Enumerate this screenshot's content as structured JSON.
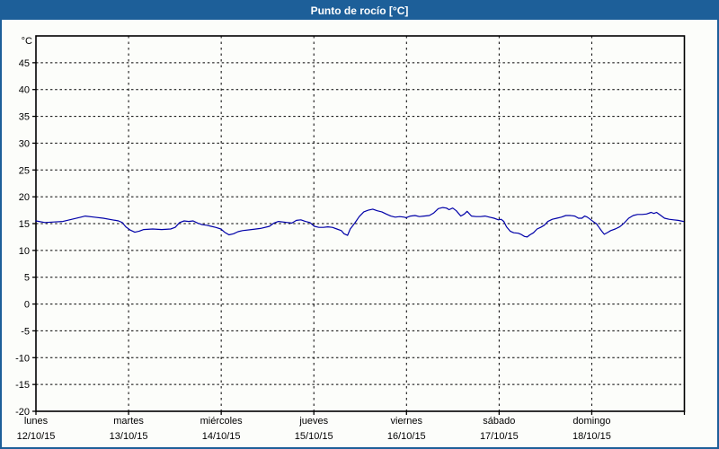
{
  "window": {
    "title": "Punto de rocío [°C]"
  },
  "chart_data": {
    "type": "line",
    "title": "Punto de rocío [°C]",
    "xlabel": "",
    "ylabel": "°C",
    "x_range": [
      0,
      7
    ],
    "ylim": [
      -20,
      50
    ],
    "yticks": [
      45,
      40,
      35,
      30,
      25,
      20,
      15,
      10,
      5,
      0,
      -5,
      -10,
      -15,
      -20
    ],
    "grid": "dashed-black",
    "legend_position": "none",
    "categories": [
      {
        "day": "lunes",
        "date": "12/10/15"
      },
      {
        "day": "martes",
        "date": "13/10/15"
      },
      {
        "day": "miércoles",
        "date": "14/10/15"
      },
      {
        "day": "jueves",
        "date": "15/10/15"
      },
      {
        "day": "viernes",
        "date": "16/10/15"
      },
      {
        "day": "sábado",
        "date": "17/10/15"
      },
      {
        "day": "domingo",
        "date": "18/10/15"
      }
    ],
    "series": [
      {
        "name": "Punto de rocío",
        "unit": "°C",
        "points": [
          [
            0.0,
            15.5
          ],
          [
            0.097,
            15.2
          ],
          [
            0.194,
            15.3
          ],
          [
            0.291,
            15.4
          ],
          [
            0.388,
            15.8
          ],
          [
            0.485,
            16.2
          ],
          [
            0.533,
            16.4
          ],
          [
            0.63,
            16.2
          ],
          [
            0.727,
            16.0
          ],
          [
            0.824,
            15.7
          ],
          [
            0.892,
            15.5
          ],
          [
            0.931,
            15.2
          ],
          [
            0.97,
            14.4
          ],
          [
            1.018,
            13.8
          ],
          [
            1.067,
            13.4
          ],
          [
            1.115,
            13.6
          ],
          [
            1.163,
            13.9
          ],
          [
            1.26,
            14.0
          ],
          [
            1.357,
            13.9
          ],
          [
            1.454,
            14.0
          ],
          [
            1.503,
            14.3
          ],
          [
            1.551,
            15.2
          ],
          [
            1.6,
            15.5
          ],
          [
            1.648,
            15.4
          ],
          [
            1.697,
            15.5
          ],
          [
            1.745,
            15.1
          ],
          [
            1.794,
            14.8
          ],
          [
            1.842,
            14.7
          ],
          [
            1.891,
            14.5
          ],
          [
            1.939,
            14.3
          ],
          [
            1.997,
            14.0
          ],
          [
            2.036,
            13.4
          ],
          [
            2.084,
            12.9
          ],
          [
            2.133,
            13.1
          ],
          [
            2.181,
            13.5
          ],
          [
            2.23,
            13.7
          ],
          [
            2.327,
            13.9
          ],
          [
            2.424,
            14.1
          ],
          [
            2.521,
            14.5
          ],
          [
            2.569,
            15.1
          ],
          [
            2.618,
            15.4
          ],
          [
            2.715,
            15.2
          ],
          [
            2.763,
            15.1
          ],
          [
            2.812,
            15.6
          ],
          [
            2.86,
            15.7
          ],
          [
            2.909,
            15.4
          ],
          [
            2.957,
            15.2
          ],
          [
            3.006,
            14.5
          ],
          [
            3.054,
            14.3
          ],
          [
            3.103,
            14.3
          ],
          [
            3.151,
            14.4
          ],
          [
            3.2,
            14.3
          ],
          [
            3.248,
            14.0
          ],
          [
            3.297,
            13.7
          ],
          [
            3.326,
            13.1
          ],
          [
            3.364,
            12.8
          ],
          [
            3.393,
            14.0
          ],
          [
            3.442,
            15.1
          ],
          [
            3.49,
            16.3
          ],
          [
            3.539,
            17.2
          ],
          [
            3.587,
            17.5
          ],
          [
            3.636,
            17.7
          ],
          [
            3.684,
            17.4
          ],
          [
            3.733,
            17.2
          ],
          [
            3.781,
            16.8
          ],
          [
            3.83,
            16.4
          ],
          [
            3.878,
            16.2
          ],
          [
            3.927,
            16.3
          ],
          [
            3.975,
            16.2
          ],
          [
            3.995,
            16.1
          ],
          [
            4.043,
            16.4
          ],
          [
            4.092,
            16.5
          ],
          [
            4.14,
            16.3
          ],
          [
            4.189,
            16.4
          ],
          [
            4.247,
            16.5
          ],
          [
            4.295,
            17.0
          ],
          [
            4.344,
            17.8
          ],
          [
            4.392,
            18.0
          ],
          [
            4.431,
            17.9
          ],
          [
            4.46,
            17.6
          ],
          [
            4.499,
            17.9
          ],
          [
            4.538,
            17.4
          ],
          [
            4.586,
            16.4
          ],
          [
            4.625,
            16.8
          ],
          [
            4.654,
            17.3
          ],
          [
            4.702,
            16.4
          ],
          [
            4.751,
            16.3
          ],
          [
            4.8,
            16.3
          ],
          [
            4.848,
            16.4
          ],
          [
            4.896,
            16.2
          ],
          [
            4.945,
            16.0
          ],
          [
            4.993,
            15.7
          ],
          [
            5.022,
            15.8
          ],
          [
            5.051,
            15.4
          ],
          [
            5.08,
            14.4
          ],
          [
            5.119,
            13.6
          ],
          [
            5.158,
            13.3
          ],
          [
            5.206,
            13.2
          ],
          [
            5.235,
            13.0
          ],
          [
            5.274,
            12.6
          ],
          [
            5.303,
            12.5
          ],
          [
            5.332,
            12.9
          ],
          [
            5.371,
            13.3
          ],
          [
            5.41,
            14.0
          ],
          [
            5.448,
            14.3
          ],
          [
            5.487,
            14.7
          ],
          [
            5.526,
            15.4
          ],
          [
            5.574,
            15.8
          ],
          [
            5.623,
            16.0
          ],
          [
            5.671,
            16.2
          ],
          [
            5.72,
            16.5
          ],
          [
            5.768,
            16.5
          ],
          [
            5.817,
            16.4
          ],
          [
            5.856,
            16.0
          ],
          [
            5.894,
            16.0
          ],
          [
            5.923,
            16.4
          ],
          [
            5.952,
            16.2
          ],
          [
            5.991,
            15.7
          ],
          [
            6.03,
            15.2
          ],
          [
            6.049,
            15.0
          ],
          [
            6.078,
            14.3
          ],
          [
            6.107,
            13.6
          ],
          [
            6.136,
            13.0
          ],
          [
            6.175,
            13.4
          ],
          [
            6.204,
            13.7
          ],
          [
            6.253,
            14.0
          ],
          [
            6.301,
            14.4
          ],
          [
            6.35,
            15.1
          ],
          [
            6.398,
            16.0
          ],
          [
            6.447,
            16.5
          ],
          [
            6.495,
            16.7
          ],
          [
            6.544,
            16.7
          ],
          [
            6.592,
            16.8
          ],
          [
            6.641,
            17.1
          ],
          [
            6.67,
            16.9
          ],
          [
            6.699,
            17.1
          ],
          [
            6.738,
            16.6
          ],
          [
            6.786,
            16.0
          ],
          [
            6.835,
            15.8
          ],
          [
            6.883,
            15.7
          ],
          [
            6.932,
            15.6
          ],
          [
            6.99,
            15.4
          ]
        ]
      }
    ],
    "colors": {
      "accent_header_border": "#1d5f99",
      "line": "#0000a8",
      "grid": "#000000",
      "background": "#fcfdfa",
      "title_text": "#ffffff"
    }
  }
}
